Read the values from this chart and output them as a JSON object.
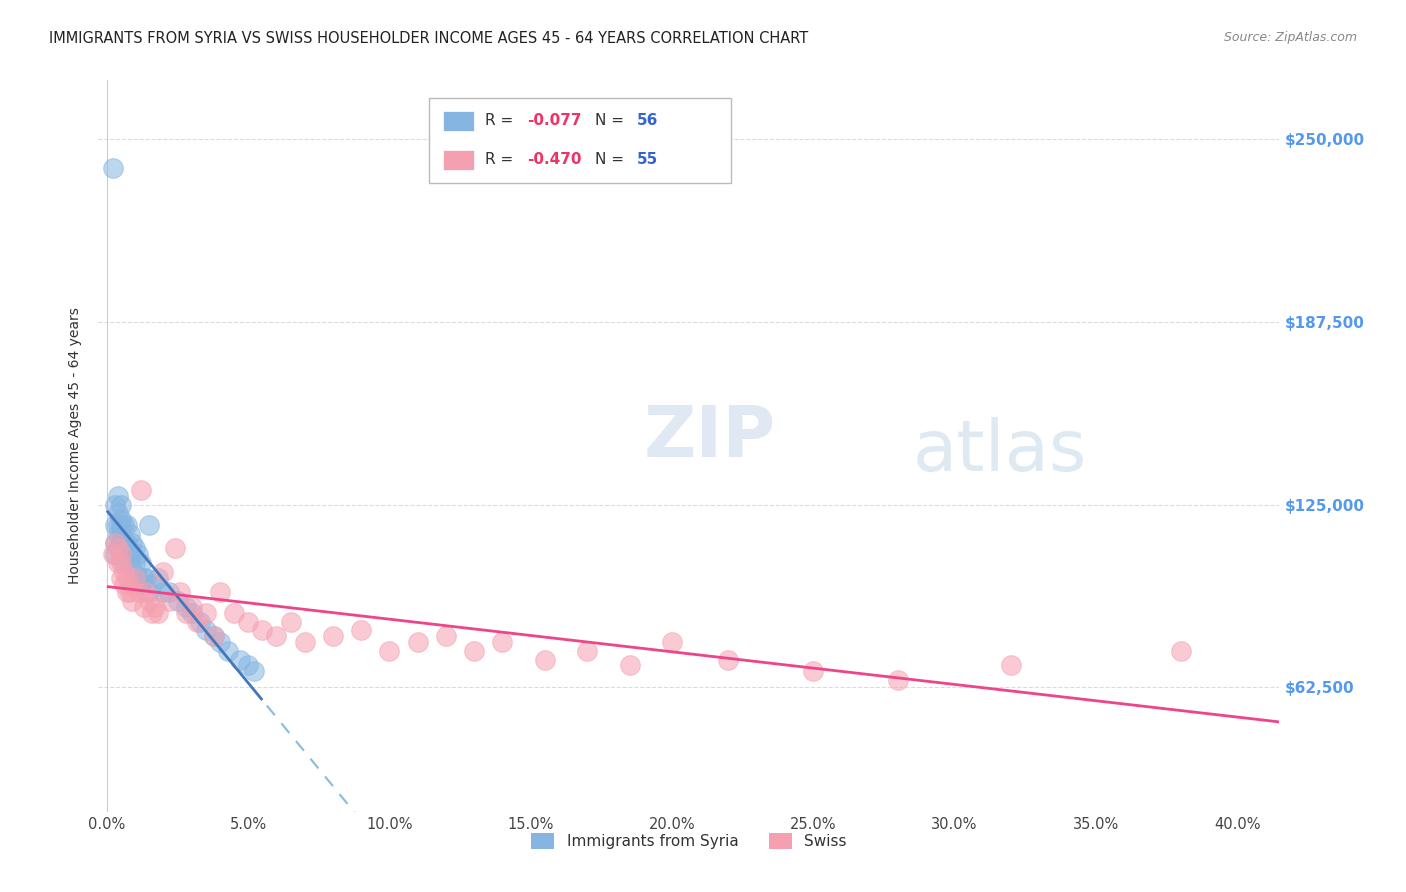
{
  "title": "IMMIGRANTS FROM SYRIA VS SWISS HOUSEHOLDER INCOME AGES 45 - 64 YEARS CORRELATION CHART",
  "source": "Source: ZipAtlas.com",
  "ylabel": "Householder Income Ages 45 - 64 years",
  "xlabel_ticks": [
    "0.0%",
    "5.0%",
    "10.0%",
    "15.0%",
    "20.0%",
    "25.0%",
    "30.0%",
    "35.0%",
    "40.0%"
  ],
  "xlabel_vals": [
    0.0,
    0.05,
    0.1,
    0.15,
    0.2,
    0.25,
    0.3,
    0.35,
    0.4
  ],
  "ytick_labels": [
    "$62,500",
    "$125,000",
    "$187,500",
    "$250,000"
  ],
  "ytick_vals": [
    62500,
    125000,
    187500,
    250000
  ],
  "ylim": [
    20000,
    270000
  ],
  "xlim": [
    -0.003,
    0.415
  ],
  "blue_color": "#85b5e0",
  "pink_color": "#f5a0b0",
  "trendline_blue_solid": "#4477bb",
  "trendline_pink_solid": "#ee4488",
  "trendline_blue_dashed": "#88bbdd",
  "background_color": "#ffffff",
  "grid_color": "#cccccc",
  "syria_x": [
    0.002,
    0.003,
    0.003,
    0.003,
    0.003,
    0.004,
    0.004,
    0.004,
    0.004,
    0.004,
    0.005,
    0.005,
    0.005,
    0.005,
    0.005,
    0.005,
    0.006,
    0.006,
    0.006,
    0.006,
    0.007,
    0.007,
    0.007,
    0.007,
    0.008,
    0.008,
    0.008,
    0.009,
    0.009,
    0.009,
    0.01,
    0.01,
    0.01,
    0.011,
    0.011,
    0.012,
    0.012,
    0.013,
    0.014,
    0.015,
    0.015,
    0.016,
    0.018,
    0.02,
    0.022,
    0.025,
    0.028,
    0.03,
    0.033,
    0.035,
    0.038,
    0.04,
    0.043,
    0.047,
    0.05,
    0.052
  ],
  "syria_y": [
    240000,
    108000,
    112000,
    118000,
    125000,
    110000,
    115000,
    118000,
    122000,
    128000,
    108000,
    112000,
    115000,
    118000,
    120000,
    125000,
    105000,
    108000,
    112000,
    118000,
    108000,
    110000,
    112000,
    118000,
    105000,
    108000,
    115000,
    103000,
    108000,
    112000,
    100000,
    105000,
    110000,
    100000,
    108000,
    98000,
    105000,
    100000,
    100000,
    118000,
    95000,
    98000,
    100000,
    95000,
    95000,
    92000,
    90000,
    88000,
    85000,
    82000,
    80000,
    78000,
    75000,
    72000,
    70000,
    68000
  ],
  "swiss_x": [
    0.002,
    0.003,
    0.004,
    0.004,
    0.005,
    0.005,
    0.005,
    0.006,
    0.006,
    0.007,
    0.007,
    0.008,
    0.008,
    0.009,
    0.01,
    0.011,
    0.012,
    0.013,
    0.014,
    0.015,
    0.016,
    0.017,
    0.018,
    0.02,
    0.022,
    0.024,
    0.026,
    0.028,
    0.03,
    0.032,
    0.035,
    0.038,
    0.04,
    0.045,
    0.05,
    0.055,
    0.06,
    0.065,
    0.07,
    0.08,
    0.09,
    0.1,
    0.11,
    0.12,
    0.13,
    0.14,
    0.155,
    0.17,
    0.185,
    0.2,
    0.22,
    0.25,
    0.28,
    0.32,
    0.38
  ],
  "swiss_y": [
    108000,
    112000,
    105000,
    110000,
    100000,
    105000,
    108000,
    98000,
    102000,
    95000,
    100000,
    95000,
    98000,
    92000,
    100000,
    95000,
    130000,
    90000,
    95000,
    92000,
    88000,
    90000,
    88000,
    102000,
    92000,
    110000,
    95000,
    88000,
    90000,
    85000,
    88000,
    80000,
    95000,
    88000,
    85000,
    82000,
    80000,
    85000,
    78000,
    80000,
    82000,
    75000,
    78000,
    80000,
    75000,
    78000,
    72000,
    75000,
    70000,
    78000,
    72000,
    68000,
    65000,
    70000,
    75000
  ]
}
